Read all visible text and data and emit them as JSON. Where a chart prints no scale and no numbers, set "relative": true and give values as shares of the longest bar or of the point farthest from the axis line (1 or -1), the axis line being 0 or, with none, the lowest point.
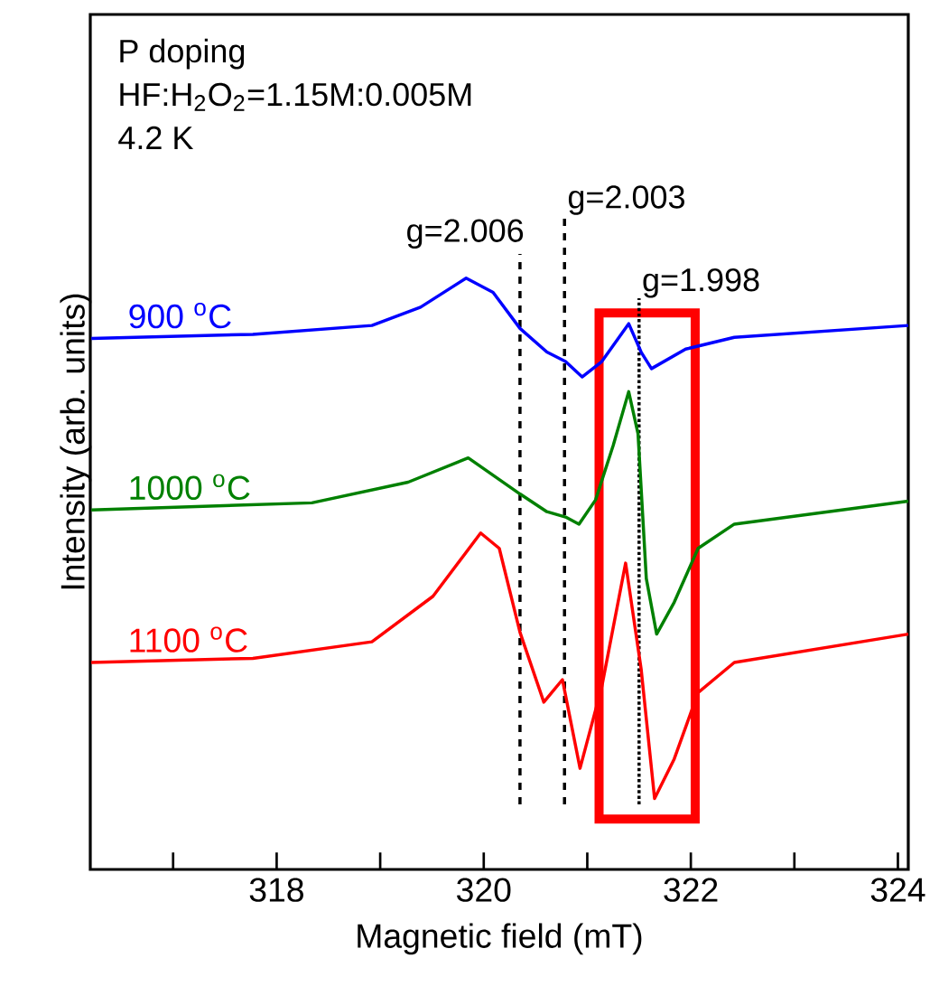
{
  "chart_data": {
    "type": "line",
    "relative": true,
    "line_style": "solid",
    "xlabel": "Magnetic field (mT)",
    "ylabel": "Intensity (arb. units)",
    "xlim": [
      316.2,
      324.1
    ],
    "xticks": [
      {
        "value": 317,
        "label": null
      },
      318,
      {
        "value": 319,
        "label": null
      },
      320,
      {
        "value": 321,
        "label": null
      },
      322,
      {
        "value": 323,
        "label": null
      },
      324
    ],
    "annotations": [
      "P doping",
      "HF:H$_{2}$O$_{2}$=1.15M:0.005M",
      "4.2 K",
      "g=2.006",
      "g=2.003",
      "g=1.998"
    ],
    "ref_lines": [
      {
        "axis": "x",
        "value": 320.35,
        "line_style": "dashed",
        "color": "#000000"
      },
      {
        "axis": "x",
        "value": 320.78,
        "line_style": "dashed",
        "color": "#000000"
      },
      {
        "axis": "x",
        "value": 321.5,
        "line_style": "dotted",
        "color": "#000000"
      }
    ],
    "series": [
      {
        "name": "900 $^{o}$C",
        "color": "#0000ff",
        "x": [
          316.21,
          317.77,
          318.92,
          319.39,
          319.83,
          320.09,
          320.35,
          320.61,
          320.79,
          320.95,
          321.14,
          321.4,
          321.52,
          321.62,
          321.95,
          322.42,
          324.1
        ],
        "values": [
          0.898,
          0.905,
          0.92,
          0.951,
          1.0,
          0.976,
          0.915,
          0.875,
          0.859,
          0.833,
          0.859,
          0.923,
          0.875,
          0.847,
          0.88,
          0.9,
          0.92
        ]
      },
      {
        "name": "1000 $^{o}$C",
        "color": "#008000",
        "x": [
          316.21,
          318.34,
          319.27,
          319.85,
          320.35,
          320.61,
          320.79,
          320.92,
          321.08,
          321.25,
          321.4,
          321.49,
          321.57,
          321.67,
          321.84,
          322.07,
          322.42,
          324.1
        ],
        "values": [
          0.608,
          0.62,
          0.655,
          0.696,
          0.635,
          0.605,
          0.596,
          0.584,
          0.625,
          0.717,
          0.808,
          0.737,
          0.492,
          0.398,
          0.452,
          0.543,
          0.584,
          0.623
        ]
      },
      {
        "name": "1100 $^{o}$C",
        "color": "#ff0000",
        "x": [
          316.21,
          317.77,
          318.92,
          319.51,
          319.97,
          320.15,
          320.35,
          320.58,
          320.76,
          320.93,
          321.14,
          321.37,
          321.52,
          321.65,
          321.84,
          322.07,
          322.42,
          324.1
        ],
        "values": [
          0.35,
          0.357,
          0.385,
          0.462,
          0.569,
          0.543,
          0.401,
          0.283,
          0.321,
          0.171,
          0.309,
          0.518,
          0.339,
          0.12,
          0.187,
          0.299,
          0.35,
          0.398
        ]
      }
    ]
  }
}
